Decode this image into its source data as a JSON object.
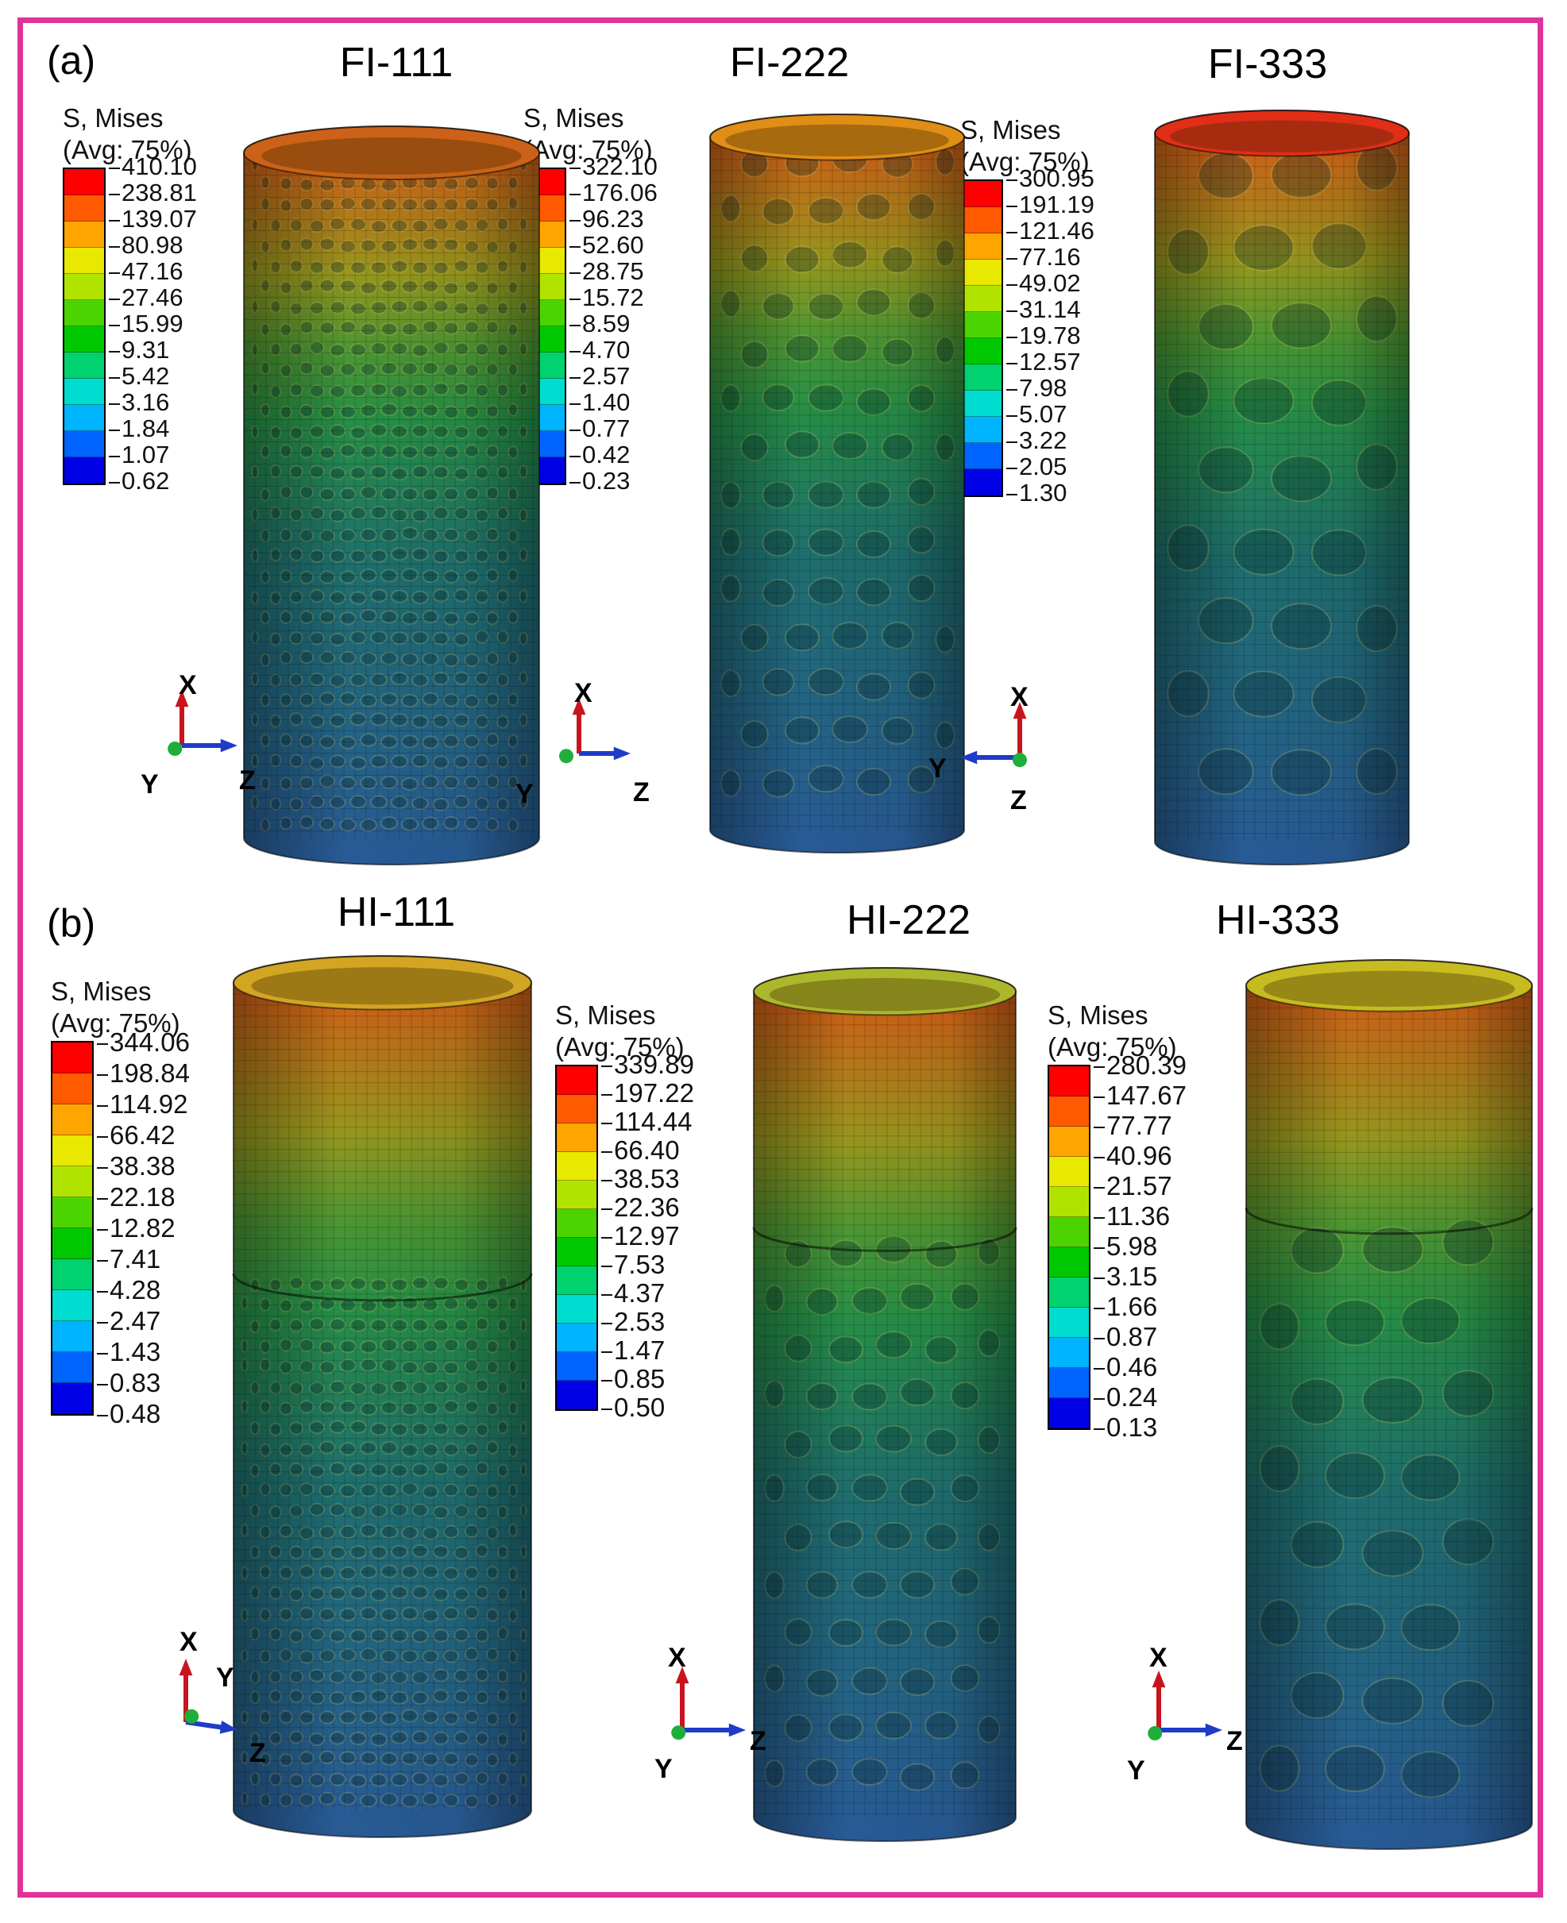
{
  "legend_colors": [
    "#ff0000",
    "#ff5a00",
    "#ffa500",
    "#e8e800",
    "#b0e400",
    "#4cd400",
    "#00c800",
    "#00d270",
    "#00dcd0",
    "#00b4ff",
    "#0064ff",
    "#0000e6"
  ],
  "panel_a": {
    "label": "(a)",
    "items": [
      {
        "title": "FI-111",
        "legend_title": "S, Mises",
        "legend_subtitle": "(Avg: 75%)",
        "values": [
          "410.10",
          "238.81",
          "139.07",
          "80.98",
          "47.16",
          "27.46",
          "15.99",
          "9.31",
          "5.42",
          "3.16",
          "1.84",
          "1.07",
          "0.62"
        ],
        "axes": [
          "X",
          "Y",
          "Z"
        ]
      },
      {
        "title": "FI-222",
        "legend_title": "S, Mises",
        "legend_subtitle": "(Avg: 75%)",
        "values": [
          "322.10",
          "176.06",
          "96.23",
          "52.60",
          "28.75",
          "15.72",
          "8.59",
          "4.70",
          "2.57",
          "1.40",
          "0.77",
          "0.42",
          "0.23"
        ],
        "axes": [
          "X",
          "Y",
          "Z"
        ]
      },
      {
        "title": "FI-333",
        "legend_title": "S, Mises",
        "legend_subtitle": "(Avg: 75%)",
        "values": [
          "300.95",
          "191.19",
          "121.46",
          "77.16",
          "49.02",
          "31.14",
          "19.78",
          "12.57",
          "7.98",
          "5.07",
          "3.22",
          "2.05",
          "1.30"
        ],
        "axes": [
          "X",
          "Y",
          "Z"
        ]
      }
    ]
  },
  "panel_b": {
    "label": "(b)",
    "items": [
      {
        "title": "HI-111",
        "legend_title": "S, Mises",
        "legend_subtitle": "(Avg: 75%)",
        "values": [
          "344.06",
          "198.84",
          "114.92",
          "66.42",
          "38.38",
          "22.18",
          "12.82",
          "7.41",
          "4.28",
          "2.47",
          "1.43",
          "0.83",
          "0.48"
        ],
        "axes": [
          "X",
          "Z",
          "Y"
        ]
      },
      {
        "title": "HI-222",
        "legend_title": "S, Mises",
        "legend_subtitle": "(Avg: 75%)",
        "values": [
          "339.89",
          "197.22",
          "114.44",
          "66.40",
          "38.53",
          "22.36",
          "12.97",
          "7.53",
          "4.37",
          "2.53",
          "1.47",
          "0.85",
          "0.50"
        ],
        "axes": [
          "X",
          "Y",
          "Z"
        ]
      },
      {
        "title": "HI-333",
        "legend_title": "S, Mises",
        "legend_subtitle": "(Avg: 75%)",
        "values": [
          "280.39",
          "147.67",
          "77.77",
          "40.96",
          "21.57",
          "11.36",
          "5.98",
          "3.15",
          "1.66",
          "0.87",
          "0.46",
          "0.24",
          "0.13"
        ],
        "axes": [
          "X",
          "Y",
          "Z"
        ]
      }
    ]
  }
}
